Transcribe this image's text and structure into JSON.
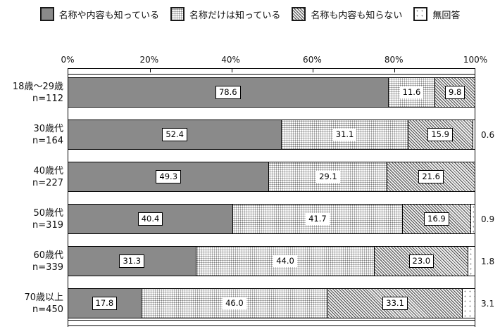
{
  "legend": {
    "items": [
      {
        "label": "名称や内容も知っている",
        "swatch": "solid-gray-swatch",
        "pattern": "solid"
      },
      {
        "label": "名称だけは知っている",
        "swatch": "dotted-swatch",
        "pattern": "dots"
      },
      {
        "label": "名称も内容も知らない",
        "swatch": "diagonal-hatch-swatch",
        "pattern": "hatch"
      },
      {
        "label": "無回答",
        "swatch": "sparse-dotted-swatch",
        "pattern": "sparse"
      }
    ]
  },
  "chart_data": {
    "type": "bar",
    "orientation": "horizontal",
    "stacked": true,
    "unit": "%",
    "xlim": [
      0,
      100
    ],
    "x_ticks": [
      "0%",
      "20%",
      "40%",
      "60%",
      "80%",
      "100%"
    ],
    "grid": false,
    "legend_position": "top",
    "series_names": [
      "名称や内容も知っている",
      "名称だけは知っている",
      "名称も内容も知らない",
      "無回答"
    ],
    "series_patterns": [
      "solid",
      "dots",
      "hatch",
      "sparse"
    ],
    "categories": [
      {
        "label": "18歳〜29歳",
        "n": "n=112"
      },
      {
        "label": "30歳代",
        "n": "n=164"
      },
      {
        "label": "40歳代",
        "n": "n=227"
      },
      {
        "label": "50歳代",
        "n": "n=319"
      },
      {
        "label": "60歳代",
        "n": "n=339"
      },
      {
        "label": "70歳以上",
        "n": "n=450"
      }
    ],
    "rows": [
      {
        "values": [
          78.6,
          11.6,
          9.8,
          0.0
        ],
        "labels": [
          "78.6",
          "11.6",
          "9.8",
          ""
        ],
        "outside_label": ""
      },
      {
        "values": [
          52.4,
          31.1,
          15.9,
          0.6
        ],
        "labels": [
          "52.4",
          "31.1",
          "15.9",
          ""
        ],
        "outside_label": "0.6"
      },
      {
        "values": [
          49.3,
          29.1,
          21.6,
          0.0
        ],
        "labels": [
          "49.3",
          "29.1",
          "21.6",
          ""
        ],
        "outside_label": ""
      },
      {
        "values": [
          40.4,
          41.7,
          16.9,
          0.9
        ],
        "labels": [
          "40.4",
          "41.7",
          "16.9",
          ""
        ],
        "outside_label": "0.9"
      },
      {
        "values": [
          31.3,
          44.0,
          23.0,
          1.8
        ],
        "labels": [
          "31.3",
          "44.0",
          "23.0",
          ""
        ],
        "outside_label": "1.8"
      },
      {
        "values": [
          17.8,
          46.0,
          33.1,
          3.1
        ],
        "labels": [
          "17.8",
          "46.0",
          "33.1",
          ""
        ],
        "outside_label": "3.1"
      }
    ]
  },
  "colors": {
    "bar_solid": "#8a8a8a",
    "border": "#000000",
    "background": "#ffffff",
    "text": "#111111"
  }
}
